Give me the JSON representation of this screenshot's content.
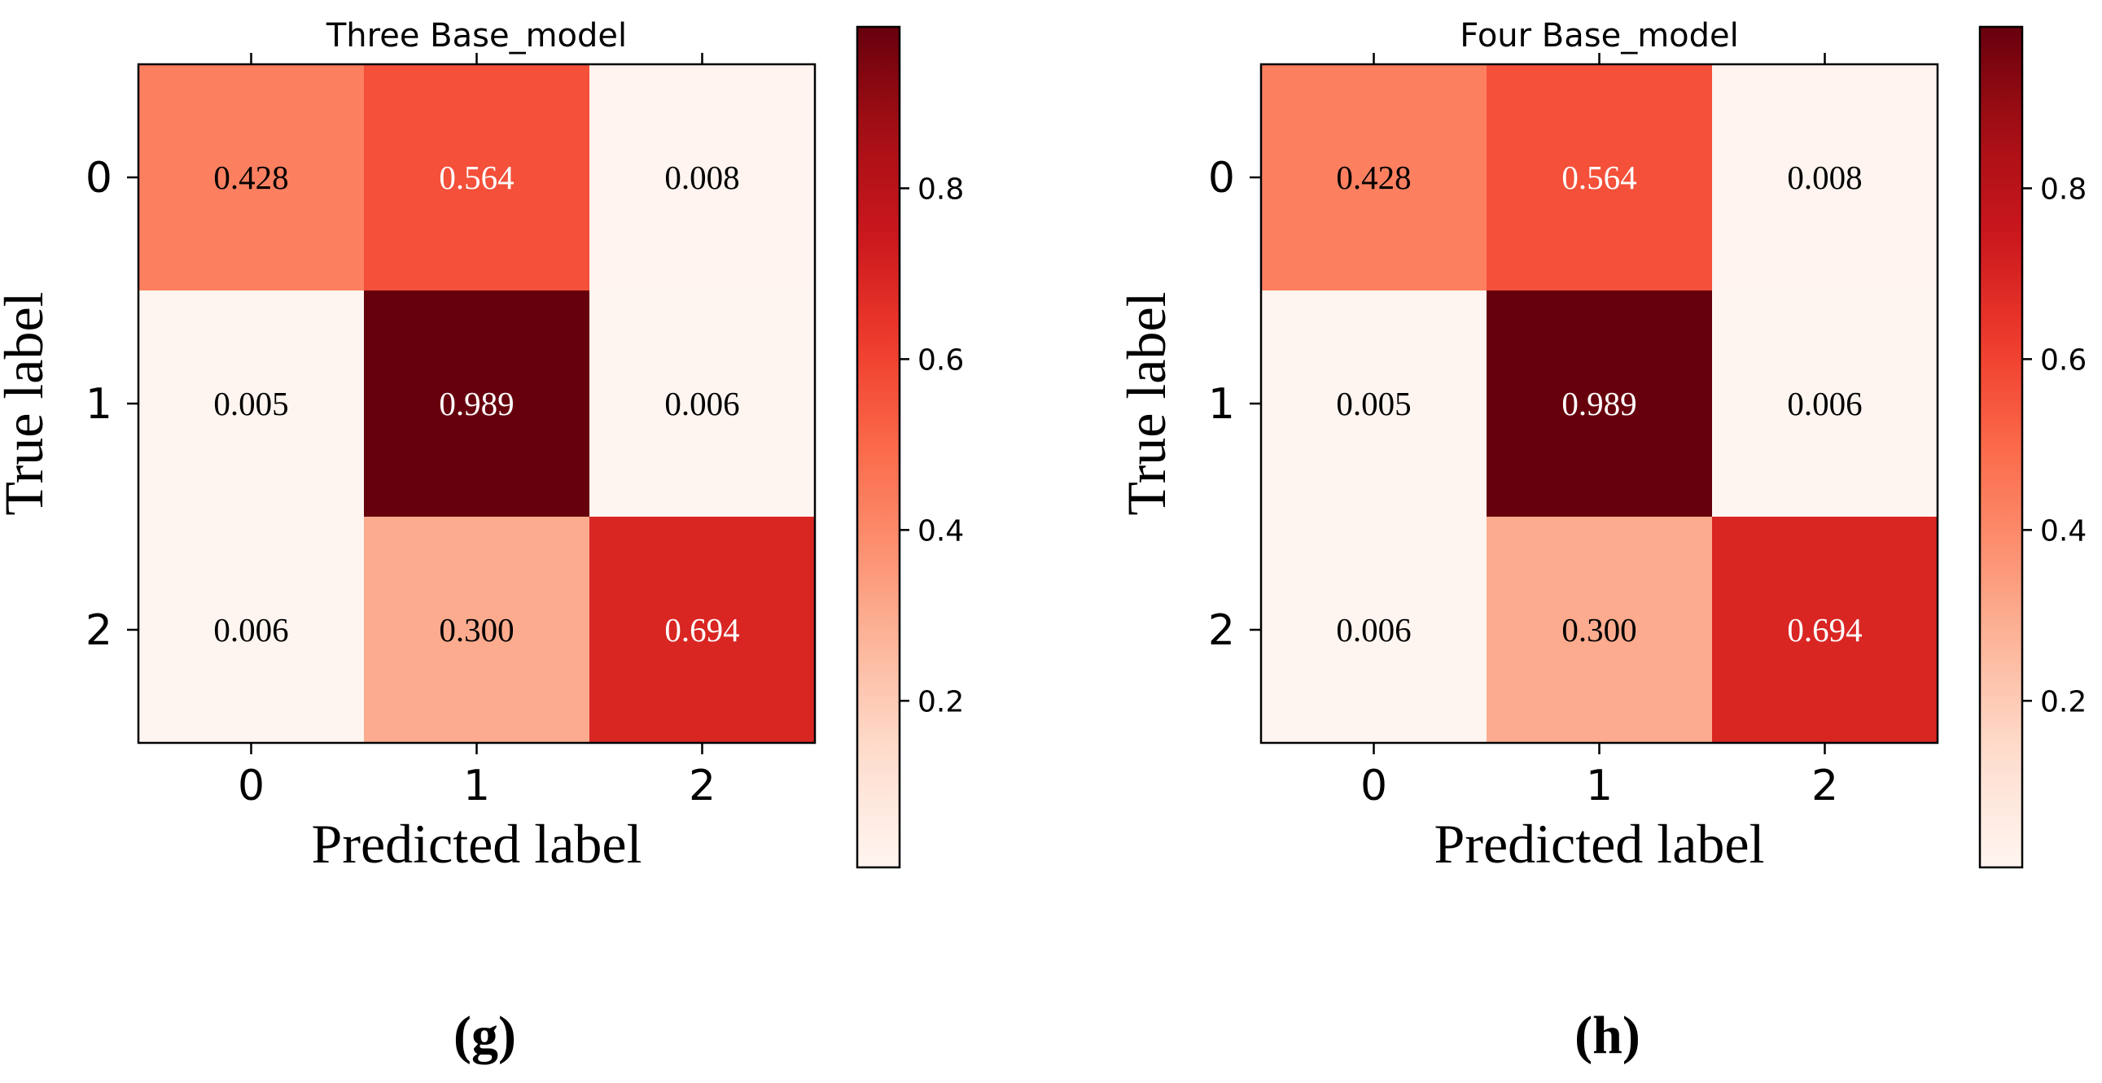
{
  "chart_data": [
    {
      "type": "heatmap",
      "title": "Three Base_model",
      "xlabel": "Predicted label",
      "ylabel": "True label",
      "x_categories": [
        "0",
        "1",
        "2"
      ],
      "y_categories": [
        "0",
        "1",
        "2"
      ],
      "values": [
        [
          0.428,
          0.564,
          0.008
        ],
        [
          0.005,
          0.989,
          0.006
        ],
        [
          0.006,
          0.3,
          0.694
        ]
      ],
      "cell_labels": [
        [
          "0.428",
          "0.564",
          "0.008"
        ],
        [
          "0.005",
          "0.989",
          "0.006"
        ],
        [
          "0.006",
          "0.300",
          "0.694"
        ]
      ],
      "colorbar": {
        "range": [
          0.005,
          0.989
        ],
        "ticks": [
          0.2,
          0.4,
          0.6,
          0.8
        ],
        "tick_labels": [
          "0.2",
          "0.4",
          "0.6",
          "0.8"
        ],
        "colormap": "Reds"
      },
      "caption": "(g)"
    },
    {
      "type": "heatmap",
      "title": "Four Base_model",
      "xlabel": "Predicted label",
      "ylabel": "True label",
      "x_categories": [
        "0",
        "1",
        "2"
      ],
      "y_categories": [
        "0",
        "1",
        "2"
      ],
      "values": [
        [
          0.428,
          0.564,
          0.008
        ],
        [
          0.005,
          0.989,
          0.006
        ],
        [
          0.006,
          0.3,
          0.694
        ]
      ],
      "cell_labels": [
        [
          "0.428",
          "0.564",
          "0.008"
        ],
        [
          "0.005",
          "0.989",
          "0.006"
        ],
        [
          "0.006",
          "0.300",
          "0.694"
        ]
      ],
      "colorbar": {
        "range": [
          0.005,
          0.989
        ],
        "ticks": [
          0.2,
          0.4,
          0.6,
          0.8
        ],
        "tick_labels": [
          "0.2",
          "0.4",
          "0.6",
          "0.8"
        ],
        "colormap": "Reds"
      },
      "caption": "(h)"
    }
  ]
}
